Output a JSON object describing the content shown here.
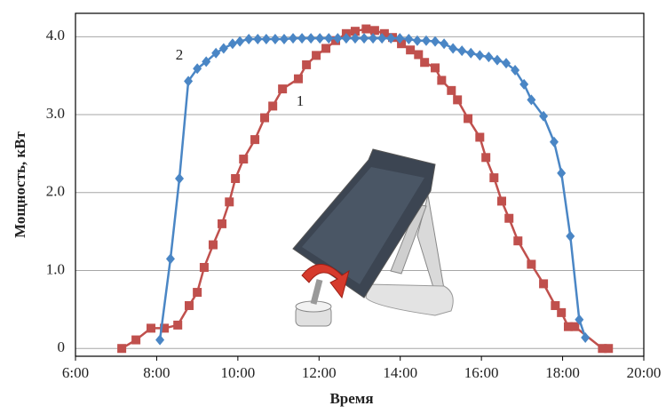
{
  "chart_data": {
    "type": "line",
    "xlabel": "Время",
    "ylabel": "Мощность, кВт",
    "xlim": [
      6,
      20
    ],
    "ylim": [
      -0.1,
      4.3
    ],
    "xticks": [
      {
        "value": 6,
        "label": "6:00"
      },
      {
        "value": 8,
        "label": "8:00"
      },
      {
        "value": 10,
        "label": "10:00"
      },
      {
        "value": 12,
        "label": "12:00"
      },
      {
        "value": 14,
        "label": "14:00"
      },
      {
        "value": 16,
        "label": "16:00"
      },
      {
        "value": 18,
        "label": "18:00"
      },
      {
        "value": 20,
        "label": "20:00"
      }
    ],
    "yticks": [
      0,
      {
        "value": 1,
        "label": "1.0"
      },
      {
        "value": 2,
        "label": "2.0"
      },
      {
        "value": 3,
        "label": "3.0"
      },
      {
        "value": 4,
        "label": "4.0"
      }
    ],
    "grid": true,
    "series": [
      {
        "name": "1",
        "color": "#c0504d",
        "marker": "square",
        "x": [
          7.14,
          7.49,
          7.86,
          8.19,
          8.52,
          8.8,
          9.0,
          9.17,
          9.39,
          9.61,
          9.79,
          9.94,
          10.14,
          10.42,
          10.66,
          10.86,
          11.1,
          11.49,
          11.69,
          11.93,
          12.17,
          12.41,
          12.67,
          12.89,
          13.16,
          13.37,
          13.61,
          13.81,
          14.03,
          14.25,
          14.45,
          14.6,
          14.86,
          15.02,
          15.26,
          15.41,
          15.67,
          15.96,
          16.11,
          16.31,
          16.5,
          16.68,
          16.9,
          17.23,
          17.53,
          17.82,
          17.97,
          18.14,
          18.3,
          18.98,
          19.13
        ],
        "values": [
          0,
          0.11,
          0.26,
          0.26,
          0.3,
          0.55,
          0.72,
          1.04,
          1.33,
          1.6,
          1.88,
          2.18,
          2.43,
          2.68,
          2.96,
          3.11,
          3.33,
          3.46,
          3.64,
          3.76,
          3.85,
          3.95,
          4.04,
          4.07,
          4.1,
          4.08,
          4.04,
          3.99,
          3.91,
          3.83,
          3.77,
          3.67,
          3.6,
          3.44,
          3.31,
          3.19,
          2.95,
          2.71,
          2.45,
          2.19,
          1.89,
          1.67,
          1.38,
          1.08,
          0.83,
          0.55,
          0.46,
          0.28,
          0.28,
          0,
          0
        ]
      },
      {
        "name": "2",
        "color": "#4a86c5",
        "marker": "diamond",
        "x": [
          8.08,
          8.34,
          8.56,
          8.78,
          9.0,
          9.22,
          9.46,
          9.65,
          9.87,
          10.05,
          10.27,
          10.49,
          10.7,
          10.92,
          11.14,
          11.36,
          11.58,
          11.8,
          12.02,
          12.24,
          12.46,
          12.67,
          12.89,
          13.11,
          13.33,
          13.55,
          13.77,
          13.99,
          14.21,
          14.42,
          14.64,
          14.86,
          15.08,
          15.3,
          15.52,
          15.74,
          15.96,
          16.18,
          16.39,
          16.61,
          16.83,
          17.05,
          17.23,
          17.53,
          17.79,
          17.97,
          18.19,
          18.41,
          18.56
        ],
        "values": [
          0.11,
          1.15,
          2.18,
          3.43,
          3.59,
          3.68,
          3.79,
          3.85,
          3.91,
          3.94,
          3.97,
          3.97,
          3.97,
          3.97,
          3.97,
          3.98,
          3.98,
          3.98,
          3.98,
          3.98,
          3.98,
          3.98,
          3.98,
          3.98,
          3.98,
          3.98,
          3.98,
          3.98,
          3.97,
          3.95,
          3.95,
          3.94,
          3.91,
          3.85,
          3.82,
          3.79,
          3.76,
          3.74,
          3.7,
          3.66,
          3.57,
          3.39,
          3.19,
          2.98,
          2.65,
          2.25,
          1.44,
          0.37,
          0.14
        ]
      }
    ]
  }
}
